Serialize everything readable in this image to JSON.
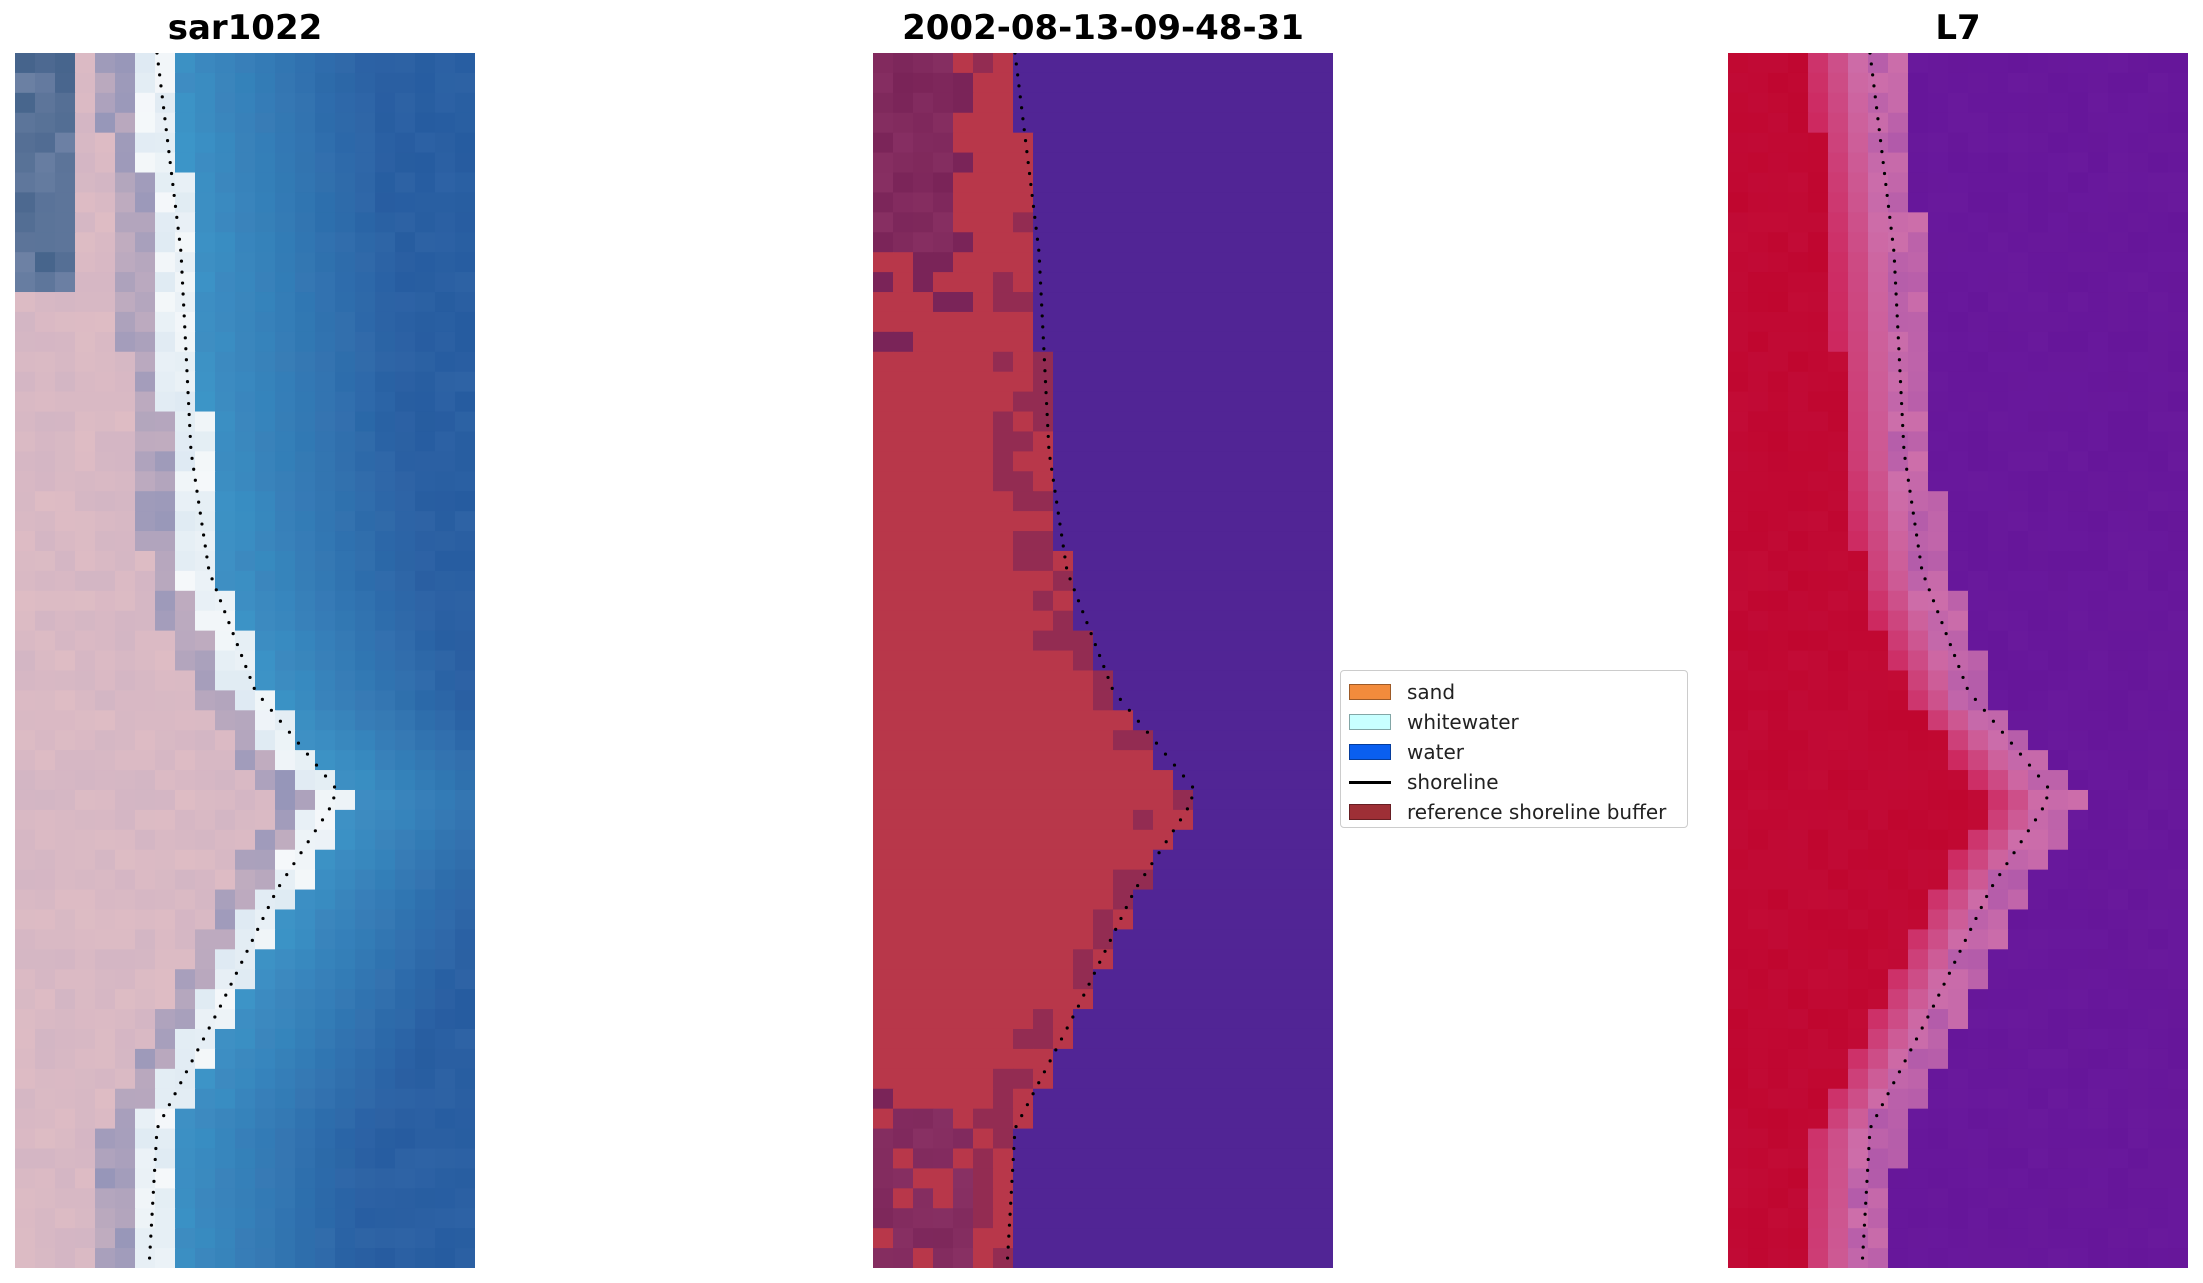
{
  "panels": [
    {
      "title": "sar1022",
      "kind": "rgb"
    },
    {
      "title": "2002-08-13-09-48-31",
      "kind": "classified"
    },
    {
      "title": "L7",
      "kind": "index"
    }
  ],
  "legend": [
    {
      "label": "sand",
      "color": "#f28b3c",
      "type": "patch"
    },
    {
      "label": "whitewater",
      "color": "#c8ffff",
      "type": "patch"
    },
    {
      "label": "water",
      "color": "#0a5ff0",
      "type": "patch"
    },
    {
      "label": "shoreline",
      "color": "#000000",
      "type": "line"
    },
    {
      "label": "reference shoreline buffer",
      "color": "#9e2f36",
      "type": "patch"
    }
  ],
  "colors": {
    "classified_water": "#512595",
    "classified_buffer": "#b8374a",
    "classified_dark": "#7a2458",
    "index_land": "#c0062f",
    "index_water": "#66169a"
  }
}
